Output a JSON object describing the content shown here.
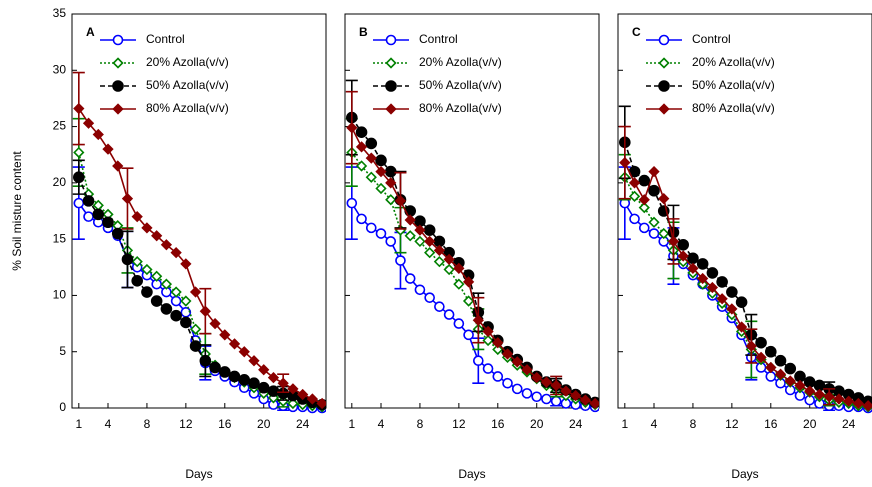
{
  "chart_data": [
    {
      "type": "line",
      "panel_label": "A",
      "y_label": "% Soil misture content",
      "x_label": "Days",
      "x": [
        1,
        2,
        3,
        4,
        5,
        6,
        7,
        8,
        9,
        10,
        11,
        12,
        13,
        14,
        15,
        16,
        17,
        18,
        19,
        20,
        21,
        22,
        23,
        24,
        25,
        26
      ],
      "xlim": [
        0.3,
        26.4
      ],
      "xticks": [
        1,
        4,
        8,
        12,
        16,
        20,
        24
      ],
      "ylim": [
        0,
        35
      ],
      "yticks": [
        0,
        5,
        10,
        15,
        20,
        25,
        30,
        35
      ],
      "series": [
        {
          "name": "Control",
          "color": "#0000ff",
          "linestyle": "solid",
          "marker": "circle-open",
          "values": [
            18.2,
            17,
            16.5,
            16,
            15.3,
            13.2,
            12.5,
            11.8,
            11,
            10.3,
            9.5,
            8.5,
            6,
            4,
            3.3,
            2.8,
            2.3,
            1.8,
            1.3,
            0.8,
            0.3,
            0.2,
            0.1,
            0.1,
            0,
            0
          ],
          "errors": [
            3.2,
            null,
            null,
            null,
            null,
            2.5,
            null,
            null,
            null,
            null,
            null,
            null,
            null,
            1.5,
            null,
            null,
            null,
            null,
            null,
            null,
            null,
            0.4,
            null,
            null,
            null,
            null
          ]
        },
        {
          "name": "20% Azolla(v/v)",
          "color": "#008000",
          "linestyle": "dotted",
          "marker": "diamond-open",
          "values": [
            22.7,
            19,
            18,
            17.2,
            16.2,
            14,
            13,
            12.3,
            11.7,
            11,
            10.3,
            9.5,
            7,
            4.8,
            3.8,
            3.2,
            2.7,
            2.3,
            1.8,
            1.3,
            0.9,
            0.6,
            0.4,
            0.3,
            0.2,
            0.1
          ],
          "errors": [
            3,
            null,
            null,
            null,
            null,
            2,
            null,
            null,
            null,
            null,
            null,
            null,
            null,
            1.8,
            null,
            null,
            null,
            null,
            null,
            null,
            null,
            0.5,
            null,
            null,
            null,
            null
          ]
        },
        {
          "name": "50% Azolla(v/v)",
          "color": "#000000",
          "linestyle": "dashed",
          "marker": "circle-filled",
          "values": [
            20.5,
            18.4,
            17.2,
            16.5,
            15.5,
            13.2,
            11.3,
            10.3,
            9.5,
            8.8,
            8.2,
            7.6,
            5.5,
            4.2,
            3.6,
            3.2,
            2.8,
            2.5,
            2.2,
            1.8,
            1.5,
            1.3,
            1.1,
            0.8,
            0.5,
            0.3
          ],
          "errors": [
            1.5,
            null,
            null,
            null,
            null,
            2.5,
            null,
            null,
            null,
            null,
            null,
            null,
            null,
            1.4,
            null,
            null,
            null,
            null,
            null,
            null,
            null,
            0.6,
            null,
            null,
            null,
            null
          ]
        },
        {
          "name": "80% Azolla(v/v)",
          "color": "#8b0000",
          "linestyle": "solid",
          "marker": "diamond-filled",
          "values": [
            26.6,
            25.3,
            24.3,
            23,
            21.5,
            18.6,
            17,
            16,
            15.3,
            14.5,
            13.8,
            12.8,
            10.3,
            8.6,
            7.5,
            6.5,
            5.7,
            5,
            4.2,
            3.4,
            2.7,
            2.2,
            1.7,
            1.2,
            0.8,
            0.4
          ],
          "errors": [
            3.2,
            null,
            null,
            null,
            null,
            2.7,
            null,
            null,
            null,
            null,
            null,
            null,
            null,
            2,
            null,
            null,
            null,
            null,
            null,
            null,
            null,
            0.8,
            null,
            null,
            null,
            null
          ]
        }
      ]
    },
    {
      "type": "line",
      "panel_label": "B",
      "x_label": "Days",
      "x": [
        1,
        2,
        3,
        4,
        5,
        6,
        7,
        8,
        9,
        10,
        11,
        12,
        13,
        14,
        15,
        16,
        17,
        18,
        19,
        20,
        21,
        22,
        23,
        24,
        25,
        26
      ],
      "xlim": [
        0.3,
        26.4
      ],
      "xticks": [
        1,
        4,
        8,
        12,
        16,
        20,
        24
      ],
      "ylim": [
        0,
        35
      ],
      "series": [
        {
          "name": "Control",
          "color": "#0000ff",
          "linestyle": "solid",
          "marker": "circle-open",
          "values": [
            18.2,
            16.8,
            16,
            15.5,
            14.8,
            13.1,
            11.5,
            10.5,
            9.8,
            9,
            8.3,
            7.5,
            6.5,
            4.2,
            3.5,
            2.8,
            2.2,
            1.7,
            1.3,
            1,
            0.8,
            0.6,
            0.4,
            0.3,
            0.2,
            0.1
          ],
          "errors": [
            3.2,
            null,
            null,
            null,
            null,
            2.5,
            null,
            null,
            null,
            null,
            null,
            null,
            null,
            2,
            null,
            null,
            null,
            null,
            null,
            null,
            null,
            0.4,
            null,
            null,
            null,
            null
          ]
        },
        {
          "name": "20% Azolla(v/v)",
          "color": "#008000",
          "linestyle": "dotted",
          "marker": "diamond-open",
          "values": [
            22.7,
            21.5,
            20.5,
            19.5,
            18.5,
            15.8,
            15.3,
            14.8,
            13.8,
            13,
            12.3,
            11,
            9.5,
            7,
            6,
            5.2,
            4.5,
            3.8,
            3.2,
            2.6,
            2,
            1.5,
            1.1,
            0.8,
            0.5,
            0.3
          ],
          "errors": [
            3,
            null,
            null,
            null,
            null,
            2,
            null,
            null,
            null,
            null,
            null,
            null,
            null,
            1.8,
            null,
            null,
            null,
            null,
            null,
            null,
            null,
            0.5,
            null,
            null,
            null,
            null
          ]
        },
        {
          "name": "50% Azolla(v/v)",
          "color": "#000000",
          "linestyle": "dashed",
          "marker": "circle-filled",
          "values": [
            25.8,
            24.5,
            23.5,
            22,
            21,
            18.5,
            17.5,
            16.6,
            15.8,
            14.8,
            13.8,
            12.9,
            11.8,
            8.5,
            7.2,
            6,
            5,
            4.3,
            3.6,
            2.8,
            2.3,
            2,
            1.6,
            1.2,
            0.8,
            0.5
          ],
          "errors": [
            3.3,
            null,
            null,
            null,
            null,
            2.5,
            null,
            null,
            null,
            null,
            null,
            null,
            null,
            1.7,
            null,
            null,
            null,
            null,
            null,
            null,
            null,
            0.6,
            null,
            null,
            null,
            null
          ]
        },
        {
          "name": "80% Azolla(v/v)",
          "color": "#8b0000",
          "linestyle": "solid",
          "marker": "diamond-filled",
          "values": [
            24.9,
            23.2,
            22.2,
            21,
            20,
            18.4,
            16.7,
            15.8,
            14.8,
            14,
            13.2,
            12.4,
            11.2,
            7.8,
            6.8,
            5.8,
            4.8,
            4.1,
            3.4,
            2.7,
            2.3,
            2,
            1.5,
            1.1,
            0.7,
            0.4
          ],
          "errors": [
            3.2,
            null,
            null,
            null,
            null,
            2.5,
            null,
            null,
            null,
            null,
            null,
            null,
            null,
            2,
            null,
            null,
            null,
            null,
            null,
            null,
            null,
            0.8,
            null,
            null,
            null,
            null
          ]
        }
      ]
    },
    {
      "type": "line",
      "panel_label": "C",
      "x_label": "Days",
      "x": [
        1,
        2,
        3,
        4,
        5,
        6,
        7,
        8,
        9,
        10,
        11,
        12,
        13,
        14,
        15,
        16,
        17,
        18,
        19,
        20,
        21,
        22,
        23,
        24,
        25,
        26
      ],
      "xlim": [
        0.3,
        26.4
      ],
      "xticks": [
        1,
        4,
        8,
        12,
        16,
        20,
        24
      ],
      "ylim": [
        0,
        35
      ],
      "series": [
        {
          "name": "Control",
          "color": "#0000ff",
          "linestyle": "solid",
          "marker": "circle-open",
          "values": [
            18.2,
            16.8,
            16,
            15.5,
            14.8,
            13.5,
            12.8,
            11.8,
            11,
            10,
            9,
            8,
            6.5,
            4.5,
            3.6,
            2.8,
            2.2,
            1.6,
            1.1,
            0.7,
            0.4,
            0.2,
            0.2,
            0.1,
            0.1,
            0
          ],
          "errors": [
            3.2,
            null,
            null,
            null,
            null,
            2.5,
            null,
            null,
            null,
            null,
            null,
            null,
            null,
            2,
            null,
            null,
            null,
            null,
            null,
            null,
            null,
            0.4,
            null,
            null,
            null,
            null
          ]
        },
        {
          "name": "20% Azolla(v/v)",
          "color": "#008000",
          "linestyle": "dotted",
          "marker": "diamond-open",
          "values": [
            20.5,
            18.8,
            17.8,
            16.5,
            15.5,
            14,
            13,
            12,
            11,
            10.2,
            9.3,
            8.3,
            6.8,
            5.2,
            4.3,
            3.6,
            2.9,
            2.3,
            1.8,
            1.4,
            1,
            0.7,
            0.5,
            0.4,
            0.2,
            0.1
          ],
          "errors": [
            2,
            null,
            null,
            null,
            null,
            2.5,
            null,
            null,
            null,
            null,
            null,
            null,
            null,
            2.5,
            null,
            null,
            null,
            null,
            null,
            null,
            null,
            0.5,
            null,
            null,
            null,
            null
          ]
        },
        {
          "name": "50% Azolla(v/v)",
          "color": "#000000",
          "linestyle": "dashed",
          "marker": "circle-filled",
          "values": [
            23.6,
            21,
            20.2,
            19.3,
            17.5,
            15.6,
            14.5,
            13.3,
            12.8,
            12,
            11.2,
            10.3,
            9.4,
            6.5,
            5.8,
            5,
            4.2,
            3.5,
            2.8,
            2.3,
            2,
            1.7,
            1.5,
            1.2,
            0.9,
            0.6
          ],
          "errors": [
            3.2,
            null,
            null,
            null,
            null,
            2.4,
            null,
            null,
            null,
            null,
            null,
            null,
            null,
            1.8,
            null,
            null,
            null,
            null,
            null,
            null,
            null,
            0.6,
            null,
            null,
            null,
            null
          ]
        },
        {
          "name": "80% Azolla(v/v)",
          "color": "#8b0000",
          "linestyle": "solid",
          "marker": "diamond-filled",
          "values": [
            21.8,
            20,
            18.5,
            21,
            18.6,
            14.8,
            13.5,
            12.4,
            11.5,
            10.7,
            9.7,
            8.8,
            7.2,
            5.5,
            4.5,
            3.6,
            3,
            2.4,
            2,
            1.5,
            1.2,
            1,
            0.8,
            0.6,
            0.4,
            0.2
          ],
          "errors": [
            3.2,
            null,
            null,
            null,
            null,
            2,
            null,
            null,
            null,
            null,
            null,
            null,
            null,
            1.5,
            null,
            null,
            null,
            null,
            null,
            null,
            null,
            0.7,
            null,
            null,
            null,
            null
          ]
        }
      ]
    }
  ]
}
